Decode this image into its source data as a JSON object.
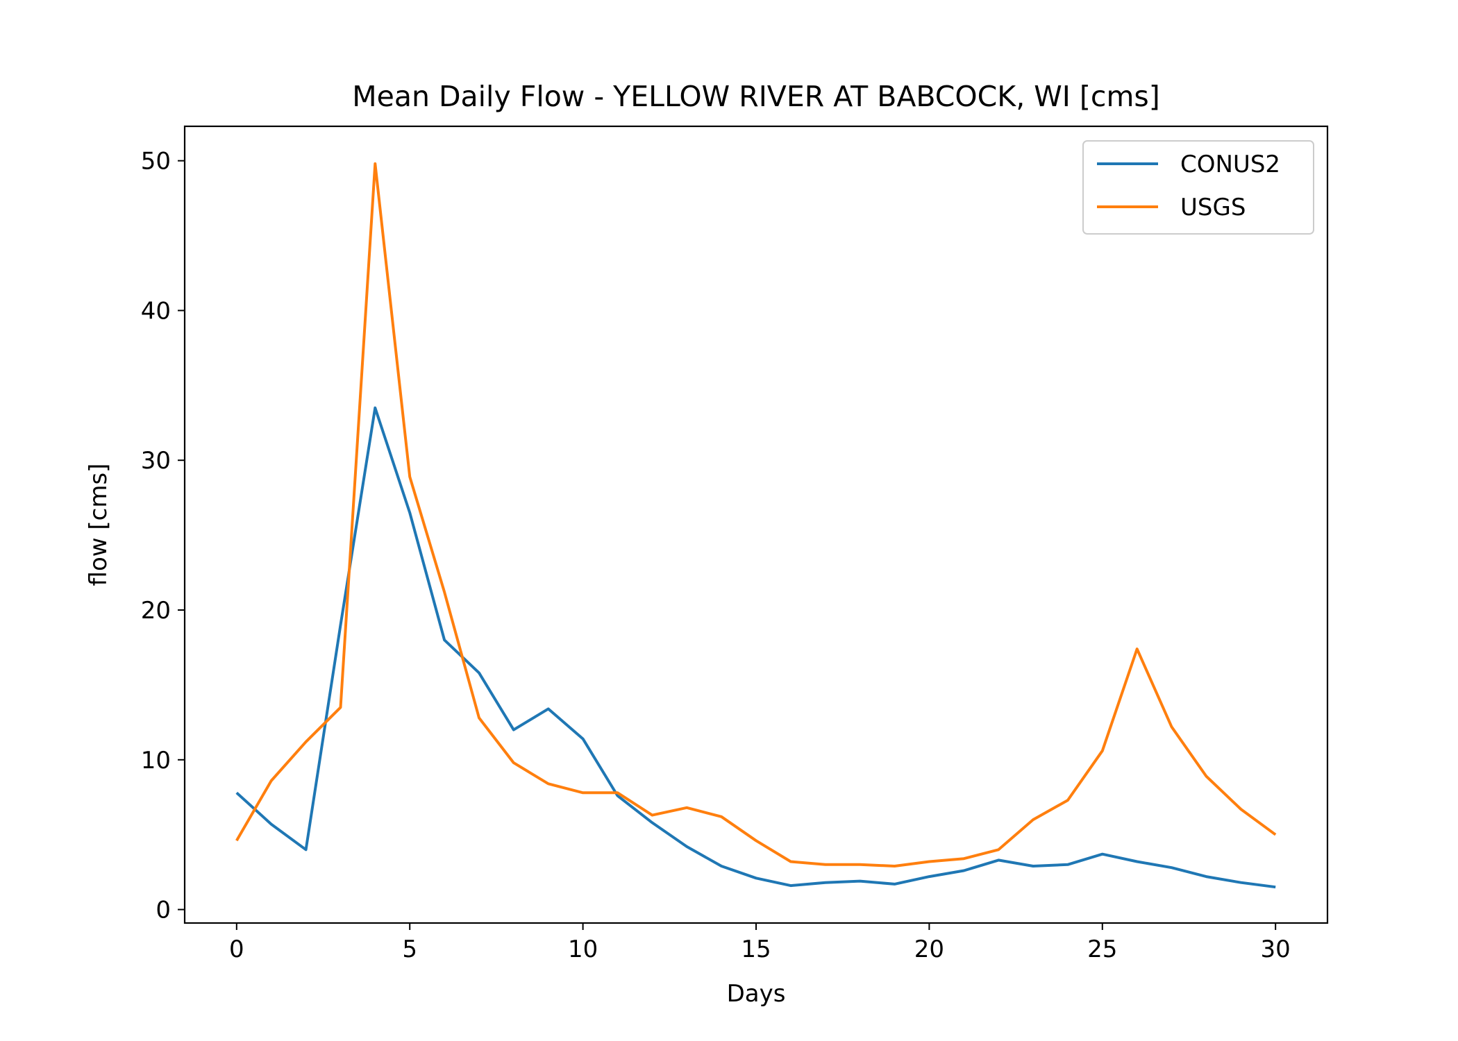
{
  "chart_data": {
    "type": "line",
    "title": "Mean Daily Flow - YELLOW RIVER AT BABCOCK, WI [cms]",
    "xlabel": "Days",
    "ylabel": "flow [cms]",
    "xlim": [
      -1.5,
      31.5
    ],
    "ylim": [
      -0.9,
      52.3
    ],
    "xticks": [
      0,
      5,
      10,
      15,
      20,
      25,
      30
    ],
    "yticks": [
      0,
      10,
      20,
      30,
      40,
      50
    ],
    "grid": false,
    "legend_position": "top-right",
    "x": [
      0,
      1,
      2,
      3,
      4,
      5,
      6,
      7,
      8,
      9,
      10,
      11,
      12,
      13,
      14,
      15,
      16,
      17,
      18,
      19,
      20,
      21,
      22,
      23,
      24,
      25,
      26,
      27,
      28,
      29,
      30
    ],
    "series": [
      {
        "name": "CONUS2",
        "color": "#1f77b4",
        "values": [
          7.8,
          5.7,
          4.0,
          19.0,
          33.5,
          26.5,
          18.0,
          15.8,
          12.0,
          13.4,
          11.4,
          7.6,
          5.8,
          4.2,
          2.9,
          2.1,
          1.6,
          1.8,
          1.9,
          1.7,
          2.2,
          2.6,
          3.3,
          2.9,
          3.0,
          3.7,
          3.2,
          2.8,
          2.2,
          1.8,
          1.5
        ]
      },
      {
        "name": "USGS",
        "color": "#ff7f0e",
        "values": [
          4.6,
          8.6,
          11.2,
          13.5,
          49.8,
          28.9,
          21.2,
          12.8,
          9.8,
          8.4,
          7.8,
          7.8,
          6.3,
          6.8,
          6.2,
          4.6,
          3.2,
          3.0,
          3.0,
          2.9,
          3.2,
          3.4,
          4.0,
          6.0,
          7.3,
          10.6,
          17.4,
          12.2,
          8.9,
          6.7,
          5.0
        ]
      }
    ]
  }
}
